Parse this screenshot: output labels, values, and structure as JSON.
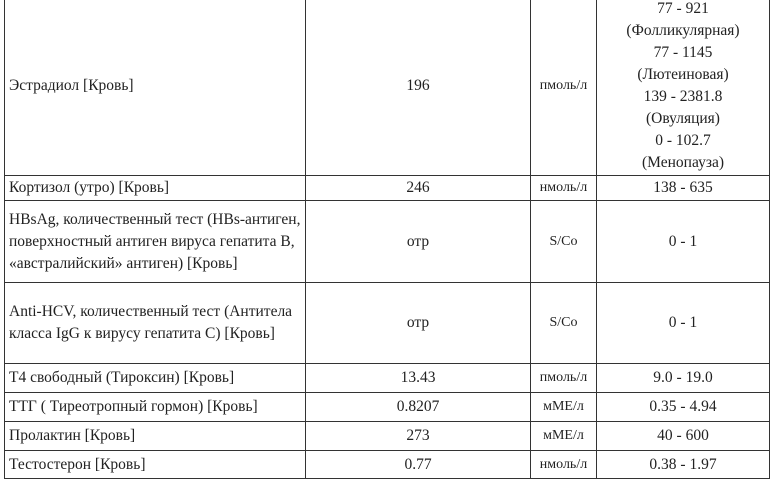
{
  "rows": [
    {
      "name": "Эстрадиол [Кровь]",
      "value": "196",
      "unit": "пмоль/л",
      "ref": [
        "77 - 921",
        "(Фолликулярная)",
        "77 - 1145",
        "(Лютеиновая)",
        "139 - 2381.8",
        "(Овуляция)",
        "0 - 102.7",
        "(Менопауза)"
      ]
    },
    {
      "name": "Кортизол (утро) [Кровь]",
      "value": "246",
      "unit": "нмоль/л",
      "ref": [
        "138 - 635"
      ]
    },
    {
      "name": "HBsAg, количественный тест (HBs-антиген, поверхностный антиген вируса гепатита B, «австралийский» антиген) [Кровь]",
      "value": "отр",
      "unit": "S/Co",
      "ref": [
        "0 - 1"
      ]
    },
    {
      "name": "Anti-HCV, количественный тест (Антитела класса IgG к вирусу гепатита C) [Кровь]",
      "value": "отр",
      "unit": "S/Co",
      "ref": [
        "0 - 1"
      ]
    },
    {
      "name": "T4 свободный (Тироксин) [Кровь]",
      "value": "13.43",
      "unit": "пмоль/л",
      "ref": [
        "9.0 - 19.0"
      ]
    },
    {
      "name": "ТТГ ( Тиреотропный гормон) [Кровь]",
      "value": "0.8207",
      "unit": "мМЕ/л",
      "ref": [
        "0.35 - 4.94"
      ]
    },
    {
      "name": "Пролактин [Кровь]",
      "value": "273",
      "unit": "мМЕ/л",
      "ref": [
        "40 - 600"
      ]
    },
    {
      "name": "Тестостерон [Кровь]",
      "value": "0.77",
      "unit": "нмоль/л",
      "ref": [
        "0.38 - 1.97"
      ]
    }
  ]
}
